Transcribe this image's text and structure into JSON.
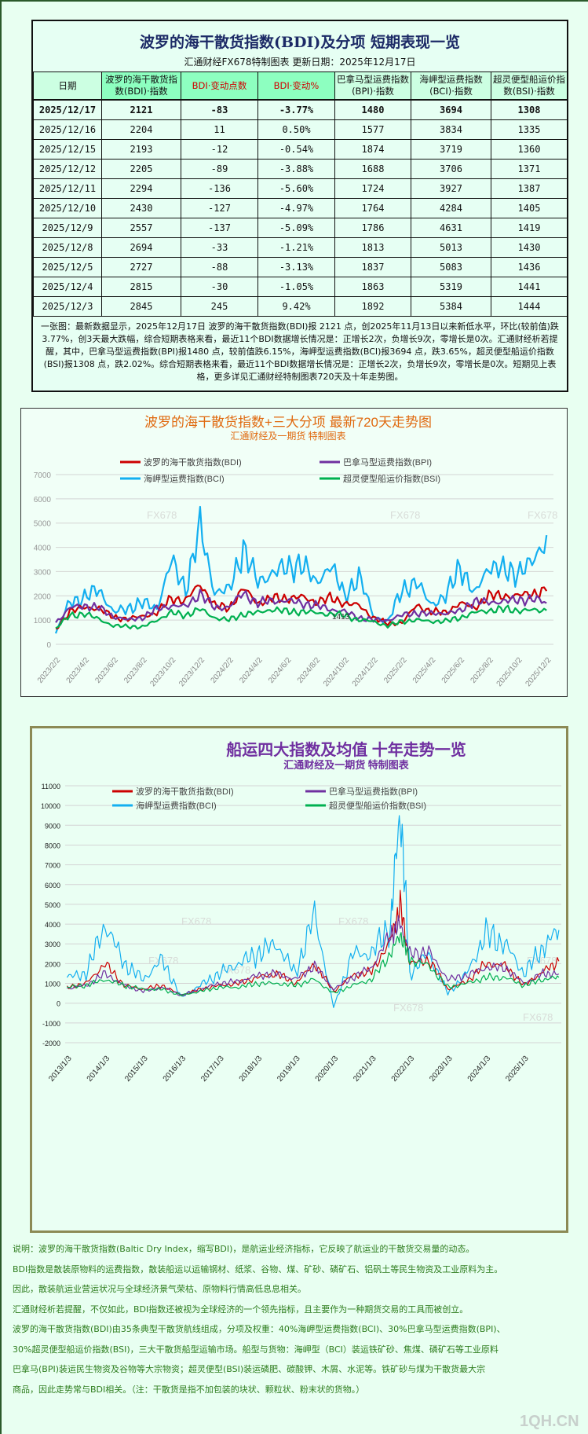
{
  "table_panel": {
    "title": "波罗的海干散货指数(BDI)及分项 短期表现一览",
    "subtitle": "汇通财经FX678特制图表      更新日期：2025年12月17日",
    "headers": [
      "日期",
      "波罗的海干散货指数(BDI)·指数",
      "BDI·变动点数",
      "BDI·变动%",
      "巴拿马型运费指数(BPI)·指数",
      "海岬型运费指数(BCI)·指数",
      "超灵便型船运价指数(BSI)·指数"
    ],
    "rows": [
      [
        "2025/12/17",
        "2121",
        "-83",
        "-3.77%",
        "1480",
        "3694",
        "1308"
      ],
      [
        "2025/12/16",
        "2204",
        "11",
        "0.50%",
        "1577",
        "3834",
        "1335"
      ],
      [
        "2025/12/15",
        "2193",
        "-12",
        "-0.54%",
        "1874",
        "3719",
        "1360"
      ],
      [
        "2025/12/12",
        "2205",
        "-89",
        "-3.88%",
        "1688",
        "3706",
        "1371"
      ],
      [
        "2025/12/11",
        "2294",
        "-136",
        "-5.60%",
        "1724",
        "3927",
        "1387"
      ],
      [
        "2025/12/10",
        "2430",
        "-127",
        "-4.97%",
        "1764",
        "4284",
        "1405"
      ],
      [
        "2025/12/9",
        "2557",
        "-137",
        "-5.09%",
        "1786",
        "4631",
        "1419"
      ],
      [
        "2025/12/8",
        "2694",
        "-33",
        "-1.21%",
        "1813",
        "5013",
        "1430"
      ],
      [
        "2025/12/5",
        "2727",
        "-88",
        "-3.13%",
        "1837",
        "5083",
        "1436"
      ],
      [
        "2025/12/4",
        "2815",
        "-30",
        "-1.05%",
        "1863",
        "5319",
        "1441"
      ],
      [
        "2025/12/3",
        "2845",
        "245",
        "9.42%",
        "1892",
        "5384",
        "1444"
      ]
    ],
    "note": "一张图：最新数据显示，2025年12月17日 波罗的海干散货指数(BDI)报 2121 点，创2025年11月13日以来新低水平，环比(较前值)跌3.77%，创3天最大跌幅，综合短期表格来看，最近11个BDI数据增长情况是：正增长2次，负增长9次，零增长是0次。汇通财经析若提醒，其中，巴拿马型运费指数(BPI)报1480 点，较前值跌6.15%，海岬型运费指数(BCI)报3694 点，跌3.65%，超灵便型船运价指数(BSI)报1308 点，跌2.02%。综合短期表格来看，最近11个BDI数据增长情况是：正增长2次，负增长9次，零增长是0次。短期见上表格，更多详见汇通财经特制图表720天及十年走势图。"
  },
  "chart_data": [
    {
      "type": "line",
      "title": "波罗的海干散货指数+三大分项  最新720天走势图",
      "subtitle": "汇通财经及一期货  特制图表",
      "ylim": [
        0,
        7000
      ],
      "yticks": [
        "0",
        "1000",
        "2000",
        "3000",
        "4000",
        "5000",
        "6000",
        "7000"
      ],
      "xticks": [
        "2023/2/2",
        "2023/4/2",
        "2023/6/2",
        "2023/8/2",
        "2023/10/2",
        "2023/12/2",
        "2024/2/2",
        "2024/4/2",
        "2024/6/2",
        "2024/8/2",
        "2024/10/2",
        "2024/12/2",
        "2025/2/2",
        "2025/4/2",
        "2025/6/2",
        "2025/8/2",
        "2025/10/2",
        "2025/12/2"
      ],
      "grid": true,
      "legend": "top",
      "annotation": "1413",
      "watermark": "FX678",
      "dates": [
        "2023-02",
        "2023-03",
        "2023-04",
        "2023-05",
        "2023-06",
        "2023-07",
        "2023-08",
        "2023-09",
        "2023-10",
        "2023-11",
        "2023-12",
        "2024-01",
        "2024-02",
        "2024-03",
        "2024-04",
        "2024-05",
        "2024-06",
        "2024-07",
        "2024-08",
        "2024-09",
        "2024-10",
        "2024-11",
        "2024-12",
        "2025-01",
        "2025-02",
        "2025-03",
        "2025-04",
        "2025-05",
        "2025-06",
        "2025-07",
        "2025-08",
        "2025-09",
        "2025-10",
        "2025-11",
        "2025-12"
      ],
      "series": [
        {
          "name": "海岬型运费指数(BCI)",
          "color": "#13aff0",
          "values": [
            450,
            1800,
            1900,
            2300,
            1300,
            1500,
            1700,
            1500,
            3400,
            2300,
            4800,
            2200,
            2200,
            4000,
            2500,
            3000,
            3100,
            3400,
            2500,
            3300,
            2000,
            2800,
            1200,
            900,
            2300,
            2500,
            1700,
            1900,
            3300,
            2000,
            3300,
            3000,
            3000,
            3300,
            4500
          ]
        },
        {
          "name": "波罗的海干散货指数(BDI)",
          "color": "#cc0000",
          "values": [
            600,
            1400,
            1500,
            1500,
            1100,
            1050,
            1150,
            1300,
            1900,
            1800,
            2500,
            1600,
            1500,
            2300,
            1700,
            1900,
            1900,
            1950,
            1750,
            1900,
            1700,
            1600,
            1100,
            850,
            900,
            1600,
            1350,
            1300,
            1700,
            1500,
            2000,
            2000,
            2000,
            2100,
            2200
          ]
        },
        {
          "name": "巴拿马型运费指数(BPI)",
          "color": "#7030a0",
          "values": [
            900,
            1500,
            1600,
            1500,
            1150,
            1000,
            1100,
            1450,
            1600,
            1550,
            2100,
            1500,
            1550,
            2100,
            1700,
            1800,
            1800,
            1700,
            1600,
            1450,
            1350,
            1100,
            1000,
            1000,
            1200,
            1300,
            1250,
            1300,
            1350,
            1800,
            1700,
            1800,
            1800,
            1900,
            1700
          ]
        },
        {
          "name": "超灵便型船运价指数(BSI)",
          "color": "#00b050",
          "values": [
            650,
            1200,
            1250,
            1050,
            750,
            750,
            700,
            1000,
            1300,
            1200,
            1450,
            1100,
            1000,
            1250,
            1300,
            1450,
            1350,
            1350,
            1300,
            1250,
            1200,
            1000,
            950,
            750,
            950,
            1000,
            950,
            950,
            1100,
            1300,
            1400,
            1450,
            1400,
            1400,
            1400
          ]
        }
      ],
      "legend_order": [
        "波罗的海干散货指数(BDI)",
        "巴拿马型运费指数(BPI)",
        "海岬型运费指数(BCI)",
        "超灵便型船运价指数(BSI)"
      ]
    },
    {
      "type": "line",
      "title": "船运四大指数及均值 十年走势一览",
      "subtitle": "汇通财经及一期货 特制图表",
      "ylim": [
        -2000,
        11000
      ],
      "yticks": [
        "-2000",
        "-1000",
        "0",
        "1000",
        "2000",
        "3000",
        "4000",
        "5000",
        "6000",
        "7000",
        "8000",
        "9000",
        "10000",
        "11000"
      ],
      "xticks": [
        "2013/1/3",
        "2014/1/3",
        "2015/1/3",
        "2016/1/3",
        "2017/1/3",
        "2018/1/3",
        "2019/1/3",
        "2020/1/3",
        "2021/1/3",
        "2022/1/3",
        "2023/1/3",
        "2024/1/3",
        "2025/1/3"
      ],
      "grid": true,
      "legend": "top",
      "watermark": "FX678",
      "dates": [
        "2013-01",
        "2013-07",
        "2014-01",
        "2014-07",
        "2015-01",
        "2015-07",
        "2016-01",
        "2016-07",
        "2017-01",
        "2017-07",
        "2018-01",
        "2018-07",
        "2019-01",
        "2019-07",
        "2020-01",
        "2020-07",
        "2021-01",
        "2021-07",
        "2021-10",
        "2022-01",
        "2022-07",
        "2023-01",
        "2023-07",
        "2024-01",
        "2024-07",
        "2025-01",
        "2025-07",
        "2025-12"
      ],
      "series": [
        {
          "name": "海岬型运费指数(BCI)",
          "color": "#13aff0",
          "values": [
            1300,
            1500,
            4000,
            2000,
            1200,
            2200,
            300,
            900,
            1500,
            2000,
            2500,
            3000,
            1500,
            4500,
            -200,
            2500,
            2500,
            4000,
            10000,
            1500,
            2500,
            500,
            1500,
            3500,
            3000,
            1500,
            2800,
            3700
          ]
        },
        {
          "name": "波罗的海干散货指数(BDI)",
          "color": "#cc0000",
          "values": [
            800,
            1000,
            2000,
            900,
            700,
            900,
            400,
            700,
            900,
            1000,
            1300,
            1500,
            1000,
            2000,
            600,
            1400,
            1600,
            3200,
            5000,
            2000,
            2200,
            700,
            1100,
            2000,
            1900,
            900,
            1600,
            2121
          ]
        },
        {
          "name": "巴拿马型运费指数(BPI)",
          "color": "#7030a0",
          "values": [
            750,
            900,
            1500,
            900,
            600,
            800,
            400,
            700,
            1000,
            1100,
            1400,
            1500,
            1200,
            1900,
            700,
            1300,
            1800,
            3500,
            4000,
            2500,
            2600,
            1200,
            1400,
            1800,
            1800,
            1000,
            1500,
            1480
          ]
        },
        {
          "name": "超灵便型船运价指数(BSI)",
          "color": "#00b050",
          "values": [
            800,
            900,
            1200,
            900,
            700,
            700,
            400,
            600,
            800,
            800,
            1000,
            1000,
            900,
            1200,
            500,
            900,
            1200,
            2500,
            3500,
            2200,
            1900,
            800,
            1000,
            1300,
            1300,
            900,
            1200,
            1308
          ]
        }
      ],
      "legend_order": [
        "波罗的海干散货指数(BDI)",
        "巴拿马型运费指数(BPI)",
        "海岬型运费指数(BCI)",
        "超灵便型船运价指数(BSI)"
      ]
    }
  ],
  "notes": [
    "说明：波罗的海干散货指数(Baltic Dry Index，缩写BDI)，是航运业经济指标，它反映了航运业的干散货交易量的动态。",
    "BDI指数是散装原物料的运费指数，散装船运以运输钢材、纸浆、谷物、煤、矿砂、磷矿石、铝矾土等民生物资及工业原料为主。",
    "因此，散装航运业营运状况与全球经济景气荣枯、原物料行情高低息息相关。",
    "汇通财经析若提醒，不仅如此，BDI指数还被视为全球经济的一个领先指标，且主要作为一种期货交易的工具而被创立。",
    "波罗的海干散货指数(BDI)由35条典型干散货航线组成，分项及权重：40%海岬型运费指数(BCI)、30%巴拿马型运费指数(BPI)、",
    "30%超灵便型船运价指数(BSI)，三大干散货船型运输市场。船型与货物：海岬型（BCI）装运铁矿砂、焦煤、磷矿石等工业原料",
    "巴拿马(BPI)装运民生物资及谷物等大宗物资；超灵便型(BSI)装运磷肥、碳酸钾、木屑、水泥等。铁矿砂与煤为干散货最大宗",
    "商品，因此走势常与BDI相关。（注：干散货是指不加包装的块状、颗粒状、粉末状的货物。）"
  ],
  "logo": "1QH.CN"
}
